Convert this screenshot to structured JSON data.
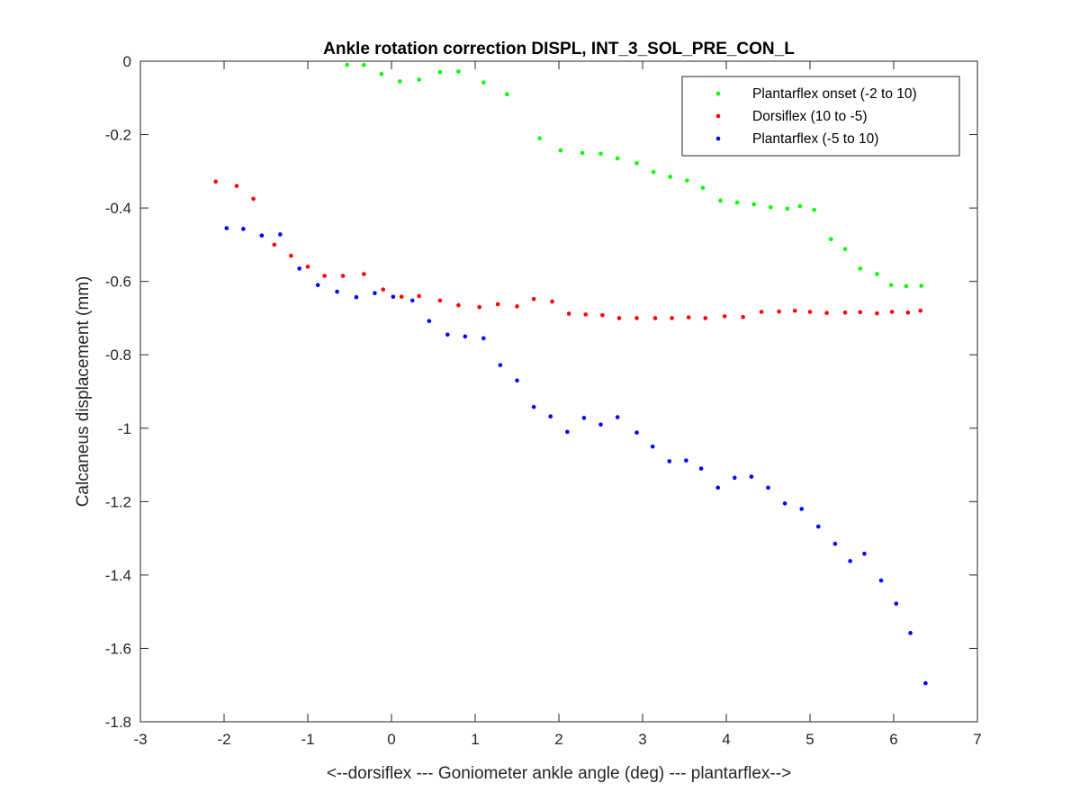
{
  "chart_data": {
    "type": "scatter",
    "title": "Ankle rotation correction DISPL, INT_3_SOL_PRE_CON_L",
    "xlabel": "<--dorsiflex --- Goniometer ankle angle (deg) --- plantarflex-->",
    "ylabel": "Calcaneus displacement (mm)",
    "xlim": [
      -3,
      7
    ],
    "ylim": [
      -1.8,
      0
    ],
    "xticks": [
      -3,
      -2,
      -1,
      0,
      1,
      2,
      3,
      4,
      5,
      6,
      7
    ],
    "xtick_labels": [
      "-3",
      "-2",
      "-1",
      "0",
      "1",
      "2",
      "3",
      "4",
      "5",
      "6",
      "7"
    ],
    "yticks": [
      0,
      -0.2,
      -0.4,
      -0.6,
      -0.8,
      -1,
      -1.2,
      -1.4,
      -1.6,
      -1.8
    ],
    "ytick_labels": [
      "0",
      "-0.2",
      "-0.4",
      "-0.6",
      "-0.8",
      "-1",
      "-1.2",
      "-1.4",
      "-1.6",
      "-1.8"
    ],
    "grid": false,
    "legend_position": "top-right",
    "series": [
      {
        "name": "Plantarflex onset (-2 to 10)",
        "color": "#00ff00",
        "points": [
          [
            -0.53,
            -0.01
          ],
          [
            -0.33,
            -0.01
          ],
          [
            -0.12,
            -0.035
          ],
          [
            0.1,
            -0.055
          ],
          [
            0.33,
            -0.05
          ],
          [
            0.58,
            -0.03
          ],
          [
            0.8,
            -0.028
          ],
          [
            1.1,
            -0.058
          ],
          [
            1.38,
            -0.09
          ],
          [
            1.77,
            -0.21
          ],
          [
            2.02,
            -0.243
          ],
          [
            2.28,
            -0.25
          ],
          [
            2.5,
            -0.252
          ],
          [
            2.7,
            -0.265
          ],
          [
            2.93,
            -0.278
          ],
          [
            3.13,
            -0.302
          ],
          [
            3.33,
            -0.315
          ],
          [
            3.53,
            -0.325
          ],
          [
            3.72,
            -0.345
          ],
          [
            3.93,
            -0.38
          ],
          [
            4.13,
            -0.385
          ],
          [
            4.33,
            -0.39
          ],
          [
            4.53,
            -0.398
          ],
          [
            4.73,
            -0.402
          ],
          [
            4.88,
            -0.395
          ],
          [
            5.05,
            -0.405
          ],
          [
            5.25,
            -0.485
          ],
          [
            5.42,
            -0.512
          ],
          [
            5.6,
            -0.565
          ],
          [
            5.8,
            -0.58
          ],
          [
            5.97,
            -0.61
          ],
          [
            6.15,
            -0.613
          ],
          [
            6.33,
            -0.612
          ]
        ]
      },
      {
        "name": "Dorsiflex (10 to -5)",
        "color": "#ff0000",
        "points": [
          [
            -2.1,
            -0.328
          ],
          [
            -1.85,
            -0.34
          ],
          [
            -1.65,
            -0.375
          ],
          [
            -1.4,
            -0.5
          ],
          [
            -1.2,
            -0.53
          ],
          [
            -1.0,
            -0.56
          ],
          [
            -0.8,
            -0.585
          ],
          [
            -0.58,
            -0.585
          ],
          [
            -0.33,
            -0.58
          ],
          [
            -0.1,
            -0.622
          ],
          [
            0.12,
            -0.642
          ],
          [
            0.33,
            -0.64
          ],
          [
            0.58,
            -0.652
          ],
          [
            0.8,
            -0.665
          ],
          [
            1.05,
            -0.67
          ],
          [
            1.27,
            -0.662
          ],
          [
            1.5,
            -0.668
          ],
          [
            1.7,
            -0.648
          ],
          [
            1.92,
            -0.655
          ],
          [
            2.12,
            -0.688
          ],
          [
            2.32,
            -0.69
          ],
          [
            2.52,
            -0.692
          ],
          [
            2.72,
            -0.7
          ],
          [
            2.93,
            -0.7
          ],
          [
            3.15,
            -0.7
          ],
          [
            3.35,
            -0.7
          ],
          [
            3.55,
            -0.698
          ],
          [
            3.75,
            -0.7
          ],
          [
            3.98,
            -0.695
          ],
          [
            4.2,
            -0.697
          ],
          [
            4.42,
            -0.683
          ],
          [
            4.63,
            -0.682
          ],
          [
            4.82,
            -0.68
          ],
          [
            5.0,
            -0.683
          ],
          [
            5.2,
            -0.686
          ],
          [
            5.42,
            -0.685
          ],
          [
            5.6,
            -0.684
          ],
          [
            5.8,
            -0.687
          ],
          [
            5.98,
            -0.683
          ],
          [
            6.17,
            -0.685
          ],
          [
            6.32,
            -0.68
          ]
        ]
      },
      {
        "name": "Plantarflex (-5 to 10)",
        "color": "#0000ff",
        "points": [
          [
            -1.97,
            -0.455
          ],
          [
            -1.77,
            -0.457
          ],
          [
            -1.55,
            -0.475
          ],
          [
            -1.33,
            -0.472
          ],
          [
            -1.1,
            -0.565
          ],
          [
            -0.88,
            -0.61
          ],
          [
            -0.65,
            -0.628
          ],
          [
            -0.42,
            -0.643
          ],
          [
            -0.2,
            -0.632
          ],
          [
            0.02,
            -0.642
          ],
          [
            0.25,
            -0.652
          ],
          [
            0.45,
            -0.708
          ],
          [
            0.67,
            -0.745
          ],
          [
            0.88,
            -0.75
          ],
          [
            1.1,
            -0.755
          ],
          [
            1.3,
            -0.828
          ],
          [
            1.5,
            -0.87
          ],
          [
            1.7,
            -0.942
          ],
          [
            1.9,
            -0.968
          ],
          [
            2.1,
            -1.01
          ],
          [
            2.3,
            -0.972
          ],
          [
            2.5,
            -0.99
          ],
          [
            2.7,
            -0.97
          ],
          [
            2.93,
            -1.012
          ],
          [
            3.12,
            -1.05
          ],
          [
            3.32,
            -1.09
          ],
          [
            3.52,
            -1.088
          ],
          [
            3.7,
            -1.11
          ],
          [
            3.9,
            -1.162
          ],
          [
            4.1,
            -1.135
          ],
          [
            4.3,
            -1.132
          ],
          [
            4.5,
            -1.162
          ],
          [
            4.7,
            -1.205
          ],
          [
            4.9,
            -1.22
          ],
          [
            5.1,
            -1.268
          ],
          [
            5.3,
            -1.315
          ],
          [
            5.48,
            -1.362
          ],
          [
            5.65,
            -1.342
          ],
          [
            5.85,
            -1.415
          ],
          [
            6.03,
            -1.478
          ],
          [
            6.2,
            -1.558
          ],
          [
            6.38,
            -1.695
          ]
        ]
      }
    ]
  }
}
